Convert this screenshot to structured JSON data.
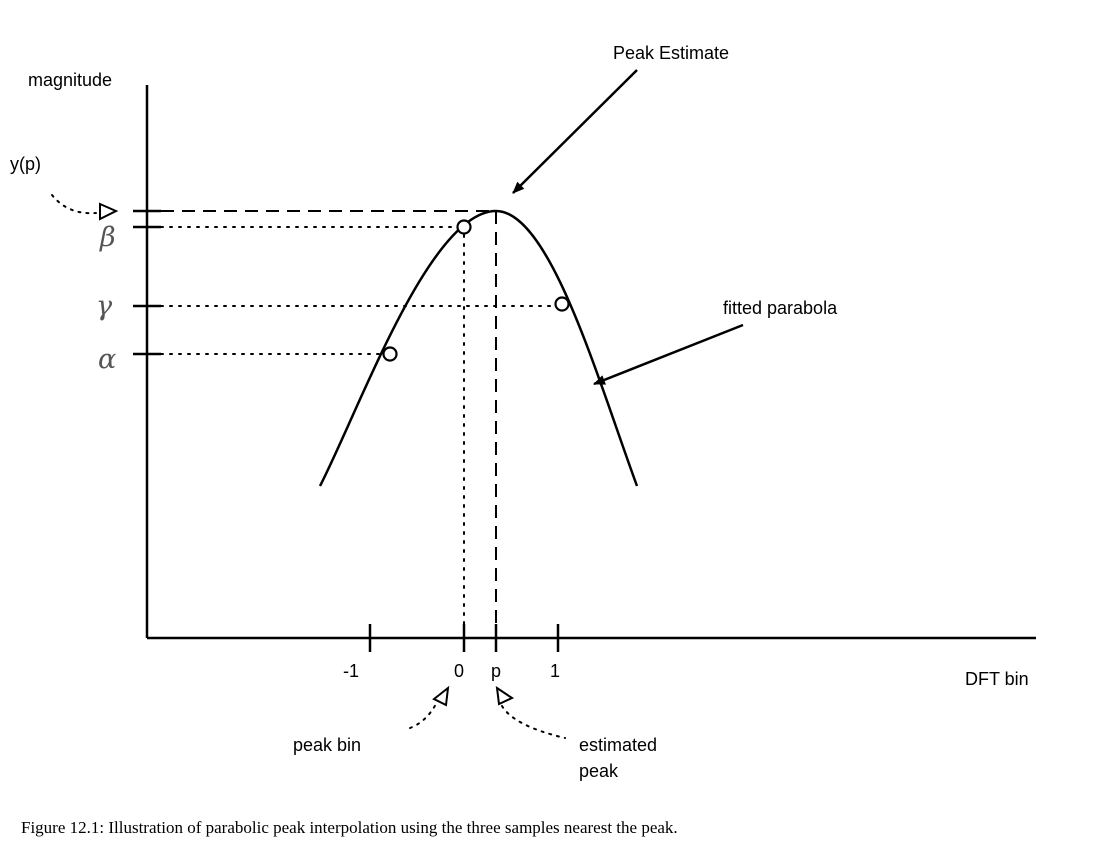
{
  "labels": {
    "y_axis": "magnitude",
    "x_axis": "DFT bin",
    "yp": "y(p)",
    "peak_estimate": "Peak Estimate",
    "fitted_parabola": "fitted parabola",
    "peak_bin": "peak bin",
    "estimated_peak_line1": "estimated",
    "estimated_peak_line2": "peak"
  },
  "greek": {
    "beta": "β",
    "gamma": "γ",
    "alpha": "α"
  },
  "ticks": {
    "minus_one": "-1",
    "zero": "0",
    "p": "p",
    "one": "1"
  },
  "caption": "Figure 12.1: Illustration of parabolic peak interpolation using the three samples nearest the peak."
}
